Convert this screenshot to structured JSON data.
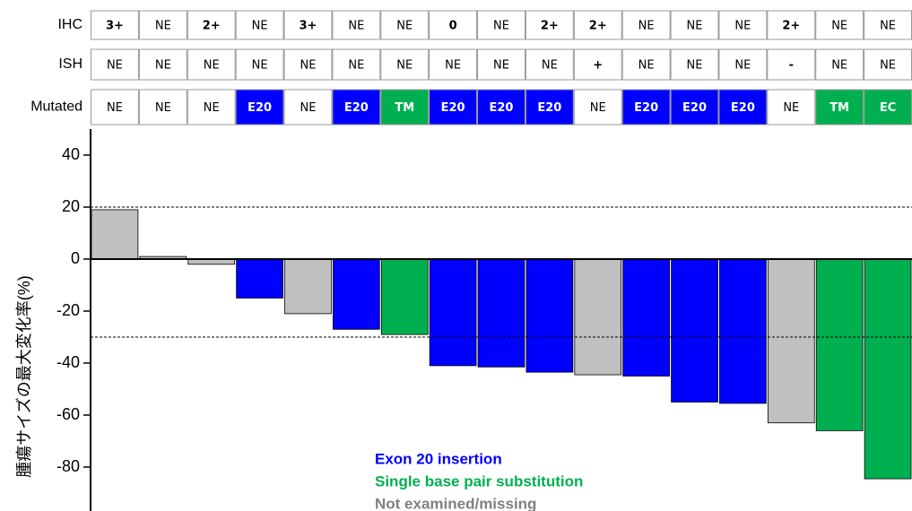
{
  "chart_data": {
    "type": "bar",
    "ylabel": "腫瘍サイズの最大変化率(%)",
    "values": [
      19,
      1,
      -2,
      -15,
      -21,
      -27,
      -29,
      -41,
      -41.5,
      -43.5,
      -44.5,
      -45,
      -55,
      -55.5,
      -63,
      -66,
      -84.5
    ],
    "colors": [
      "#c0c0c0",
      "#c0c0c0",
      "#c0c0c0",
      "#0000ff",
      "#c0c0c0",
      "#0000ff",
      "#00b050",
      "#0000ff",
      "#0000ff",
      "#0000ff",
      "#c0c0c0",
      "#0000ff",
      "#0000ff",
      "#0000ff",
      "#c0c0c0",
      "#00b050",
      "#00b050"
    ],
    "ylim": [
      -95,
      50
    ],
    "yticks": [
      40,
      20,
      0,
      -20,
      -40,
      -60,
      -80
    ],
    "reference_lines": [
      20,
      -30
    ],
    "legend": [
      {
        "label": "Exon 20 insertion",
        "color": "#0000ff"
      },
      {
        "label": "Single base pair substitution",
        "color": "#00b050"
      },
      {
        "label": "Not examined/missing",
        "color": "#808080"
      }
    ],
    "table": {
      "row_labels": [
        "IHC",
        "ISH",
        "Mutated"
      ],
      "rows": [
        [
          "3+",
          "NE",
          "2+",
          "NE",
          "3+",
          "NE",
          "NE",
          "0",
          "NE",
          "2+",
          "2+",
          "NE",
          "NE",
          "NE",
          "2+",
          "NE",
          "NE"
        ],
        [
          "NE",
          "NE",
          "NE",
          "NE",
          "NE",
          "NE",
          "NE",
          "NE",
          "NE",
          "NE",
          "+",
          "NE",
          "NE",
          "NE",
          "-",
          "NE",
          "NE"
        ],
        [
          "NE",
          "NE",
          "NE",
          "E20",
          "NE",
          "E20",
          "TM",
          "E20",
          "E20",
          "E20",
          "NE",
          "E20",
          "E20",
          "E20",
          "NE",
          "TM",
          "EC"
        ]
      ],
      "cell_colors": {
        "E20": "#0000ff",
        "TM": "#00b050",
        "EC": "#00b050"
      }
    }
  }
}
